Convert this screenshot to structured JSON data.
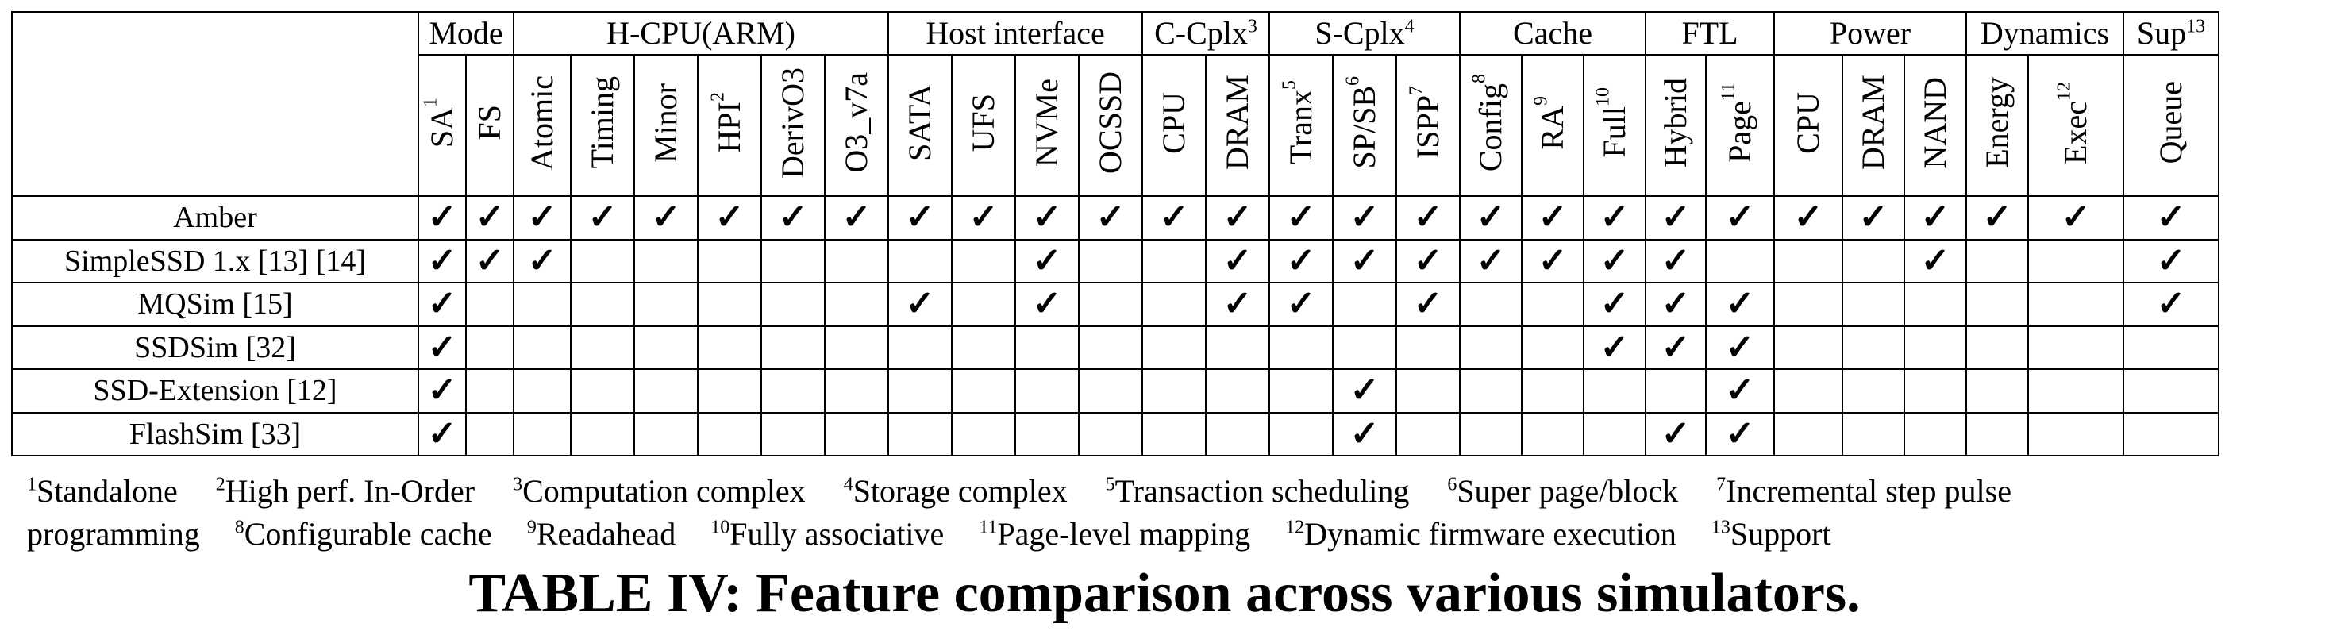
{
  "table": {
    "groups": [
      {
        "label": "Mode",
        "sup": "",
        "span": 2
      },
      {
        "label": "H-CPU(ARM)",
        "sup": "",
        "span": 6
      },
      {
        "label": "Host interface",
        "sup": "",
        "span": 4
      },
      {
        "label": "C-Cplx",
        "sup": "3",
        "span": 2
      },
      {
        "label": "S-Cplx",
        "sup": "4",
        "span": 3
      },
      {
        "label": "Cache",
        "sup": "",
        "span": 3
      },
      {
        "label": "FTL",
        "sup": "",
        "span": 2
      },
      {
        "label": "Power",
        "sup": "",
        "span": 3
      },
      {
        "label": "Dynamics",
        "sup": "",
        "span": 2
      },
      {
        "label": "Sup",
        "sup": "13",
        "span": 1
      }
    ],
    "columns": [
      {
        "label": "SA",
        "sup": "1"
      },
      {
        "label": "FS",
        "sup": ""
      },
      {
        "label": "Atomic",
        "sup": ""
      },
      {
        "label": "Timing",
        "sup": ""
      },
      {
        "label": "Minor",
        "sup": ""
      },
      {
        "label": "HPI",
        "sup": "2"
      },
      {
        "label": "DerivO3",
        "sup": ""
      },
      {
        "label": "O3_v7a",
        "sup": ""
      },
      {
        "label": "SATA",
        "sup": ""
      },
      {
        "label": "UFS",
        "sup": ""
      },
      {
        "label": "NVMe",
        "sup": ""
      },
      {
        "label": "OCSSD",
        "sup": ""
      },
      {
        "label": "CPU",
        "sup": ""
      },
      {
        "label": "DRAM",
        "sup": ""
      },
      {
        "label": "Tranx",
        "sup": "5"
      },
      {
        "label": "SP/SB",
        "sup": "6"
      },
      {
        "label": "ISPP",
        "sup": "7"
      },
      {
        "label": "Config",
        "sup": "8"
      },
      {
        "label": "RA",
        "sup": "9"
      },
      {
        "label": "Full",
        "sup": "10"
      },
      {
        "label": "Hybrid",
        "sup": ""
      },
      {
        "label": "Page",
        "sup": "11"
      },
      {
        "label": "CPU",
        "sup": ""
      },
      {
        "label": "DRAM",
        "sup": ""
      },
      {
        "label": "NAND",
        "sup": ""
      },
      {
        "label": "Energy",
        "sup": ""
      },
      {
        "label": "Exec",
        "sup": "12"
      },
      {
        "label": "Queue",
        "sup": ""
      }
    ],
    "check_symbol": "✓",
    "rows": [
      {
        "name": "Amber",
        "checks": [
          1,
          1,
          1,
          1,
          1,
          1,
          1,
          1,
          1,
          1,
          1,
          1,
          1,
          1,
          1,
          1,
          1,
          1,
          1,
          1,
          1,
          1,
          1,
          1,
          1,
          1,
          1,
          1
        ]
      },
      {
        "name": "SimpleSSD 1.x [13] [14]",
        "checks": [
          1,
          1,
          1,
          0,
          0,
          0,
          0,
          0,
          0,
          0,
          1,
          0,
          0,
          1,
          1,
          1,
          1,
          1,
          1,
          1,
          1,
          0,
          0,
          0,
          1,
          0,
          0,
          1
        ]
      },
      {
        "name": "MQSim [15]",
        "checks": [
          1,
          0,
          0,
          0,
          0,
          0,
          0,
          0,
          1,
          0,
          1,
          0,
          0,
          1,
          1,
          0,
          1,
          0,
          0,
          1,
          1,
          1,
          0,
          0,
          0,
          0,
          0,
          1
        ]
      },
      {
        "name": "SSDSim [32]",
        "checks": [
          1,
          0,
          0,
          0,
          0,
          0,
          0,
          0,
          0,
          0,
          0,
          0,
          0,
          0,
          0,
          0,
          0,
          0,
          0,
          1,
          1,
          1,
          0,
          0,
          0,
          0,
          0,
          0
        ]
      },
      {
        "name": "SSD-Extension [12]",
        "checks": [
          1,
          0,
          0,
          0,
          0,
          0,
          0,
          0,
          0,
          0,
          0,
          0,
          0,
          0,
          0,
          1,
          0,
          0,
          0,
          0,
          0,
          1,
          0,
          0,
          0,
          0,
          0,
          0
        ]
      },
      {
        "name": "FlashSim [33]",
        "checks": [
          1,
          0,
          0,
          0,
          0,
          0,
          0,
          0,
          0,
          0,
          0,
          0,
          0,
          0,
          0,
          1,
          0,
          0,
          0,
          0,
          1,
          1,
          0,
          0,
          0,
          0,
          0,
          0
        ]
      }
    ]
  },
  "footnotes": {
    "line1": [
      {
        "num": "1",
        "text": "Standalone"
      },
      {
        "num": "2",
        "text": "High perf. In-Order"
      },
      {
        "num": "3",
        "text": "Computation complex"
      },
      {
        "num": "4",
        "text": "Storage complex"
      },
      {
        "num": "5",
        "text": "Transaction scheduling"
      },
      {
        "num": "6",
        "text": "Super page/block"
      },
      {
        "num": "7",
        "text": "Incremental step pulse"
      }
    ],
    "line2_lead": "programming",
    "line2": [
      {
        "num": "8",
        "text": "Configurable cache"
      },
      {
        "num": "9",
        "text": "Readahead"
      },
      {
        "num": "10",
        "text": "Fully associative"
      },
      {
        "num": "11",
        "text": "Page-level mapping"
      },
      {
        "num": "12",
        "text": "Dynamic firmware execution"
      },
      {
        "num": "13",
        "text": "Support"
      }
    ]
  },
  "caption": "TABLE IV: Feature comparison across various simulators."
}
